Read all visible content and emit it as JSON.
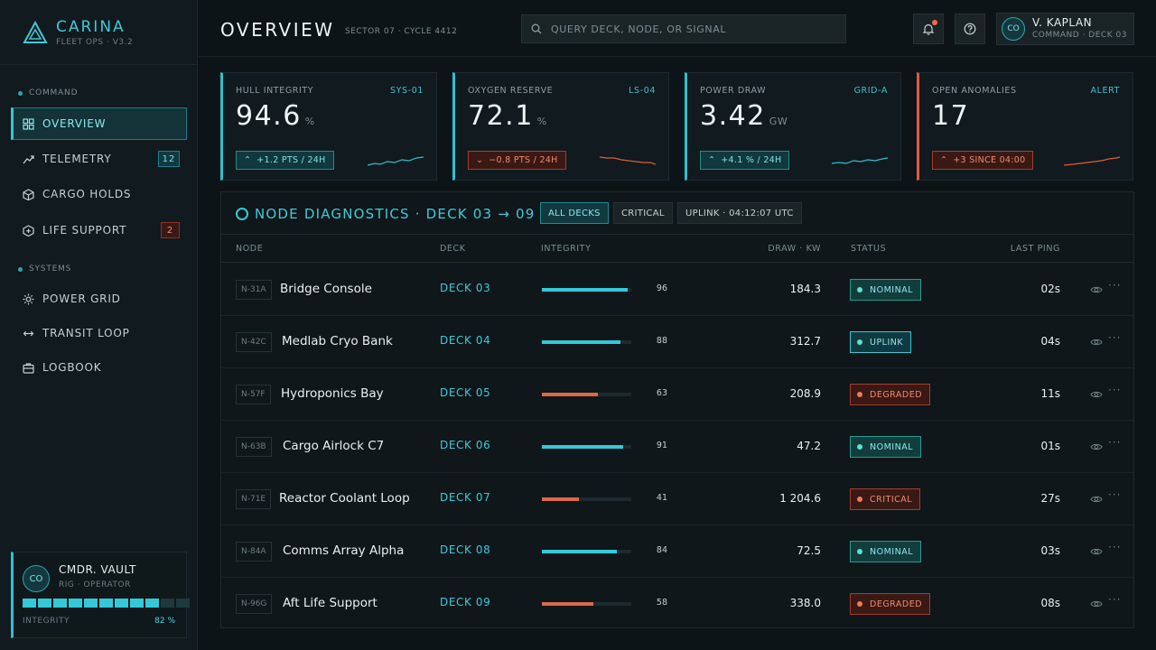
{
  "brand": {
    "name": "CARINA",
    "sub": "FLEET OPS · V3.2"
  },
  "sidebar": {
    "sections": [
      {
        "label": "COMMAND"
      },
      {
        "label": "SYSTEMS"
      }
    ],
    "items": [
      {
        "label": "OVERVIEW",
        "icon": "grid-icon",
        "active": true
      },
      {
        "label": "TELEMETRY",
        "icon": "trend-icon",
        "badge": "12",
        "badge_color": "cyan"
      },
      {
        "label": "CARGO HOLDS",
        "icon": "cube-icon"
      },
      {
        "label": "LIFE SUPPORT",
        "icon": "plus-hex-icon",
        "badge": "2",
        "badge_color": "red"
      },
      {
        "label": "POWER GRID",
        "icon": "sun-icon"
      },
      {
        "label": "TRANSIT LOOP",
        "icon": "arrows-horizontal-icon"
      },
      {
        "label": "LOGBOOK",
        "icon": "briefcase-icon"
      }
    ],
    "operator": {
      "avatar": "CO",
      "name": "CMDR. VAULT",
      "role": "RIG · OPERATOR",
      "integrity_label": "INTEGRITY",
      "integrity_value": "82 %",
      "integrity_fraction": 0.82
    }
  },
  "header": {
    "title": "OVERVIEW",
    "subtitle": "SECTOR 07 · CYCLE 4412",
    "search_placeholder": "QUERY DECK, NODE, OR SIGNAL",
    "user": {
      "avatar": "CO",
      "name": "V. KAPLAN",
      "role": "COMMAND · DECK 03"
    }
  },
  "kpis": [
    {
      "label": "HULL INTEGRITY",
      "tag": "SYS-01",
      "value": "94.6",
      "unit": "%",
      "delta": "+1.2 PTS / 24H",
      "trend": "up",
      "color": "#2ec0cf"
    },
    {
      "label": "OXYGEN RESERVE",
      "tag": "LS-04",
      "value": "72.1",
      "unit": "%",
      "delta": "−0.8 PTS / 24H",
      "trend": "down",
      "color": "#2ec0cf"
    },
    {
      "label": "POWER DRAW",
      "tag": "GRID-A",
      "value": "3.42",
      "unit": "GW",
      "delta": "+4.1 % / 24H",
      "trend": "up",
      "color": "#2ec0cf"
    },
    {
      "label": "OPEN ANOMALIES",
      "tag": "ALERT",
      "value": "17",
      "unit": "",
      "delta": "+3 SINCE 04:00",
      "trend": "down",
      "color": "#dc5c3c"
    }
  ],
  "diagnostics": {
    "title": "NODE DIAGNOSTICS · DECK 03 → 09",
    "chips": [
      {
        "label": "ALL DECKS",
        "active": true
      },
      {
        "label": "CRITICAL",
        "active": false
      },
      {
        "label": "UPLINK · 04:12:07 UTC",
        "active": false
      }
    ],
    "columns": [
      "NODE",
      "DECK",
      "INTEGRITY",
      "DRAW · KW",
      "STATUS",
      "LAST PING"
    ],
    "rows": [
      {
        "id": "N-31A",
        "name": "Bridge Console",
        "deck": "DECK 03",
        "integrity": "96",
        "draw": "184.3",
        "status": "NOMINAL",
        "status_type": "cyan",
        "ping": "02s"
      },
      {
        "id": "N-42C",
        "name": "Medlab Cryo Bank",
        "deck": "DECK 04",
        "integrity": "88",
        "draw": "312.7",
        "status": "UPLINK",
        "status_type": "uplink",
        "ping": "04s"
      },
      {
        "id": "N-57F",
        "name": "Hydroponics Bay",
        "deck": "DECK 05",
        "integrity": "63",
        "draw": "208.9",
        "status": "DEGRADED",
        "status_type": "red",
        "ping": "11s"
      },
      {
        "id": "N-63B",
        "name": "Cargo Airlock C7",
        "deck": "DECK 06",
        "integrity": "91",
        "draw": "47.2",
        "status": "NOMINAL",
        "status_type": "cyan",
        "ping": "01s"
      },
      {
        "id": "N-71E",
        "name": "Reactor Coolant Loop",
        "deck": "DECK 07",
        "integrity": "41",
        "draw": "1 204.6",
        "status": "CRITICAL",
        "status_type": "red",
        "ping": "27s"
      },
      {
        "id": "N-84A",
        "name": "Comms Array Alpha",
        "deck": "DECK 08",
        "integrity": "84",
        "draw": "72.5",
        "status": "NOMINAL",
        "status_type": "cyan",
        "ping": "03s"
      },
      {
        "id": "N-96G",
        "name": "Aft Life Support",
        "deck": "DECK 09",
        "integrity": "58",
        "draw": "338.0",
        "status": "DEGRADED",
        "status_type": "red",
        "ping": "08s"
      }
    ]
  },
  "colors": {
    "accent": "#2ec0cf",
    "alert": "#dc5c3c",
    "bg": "#0d1417"
  }
}
